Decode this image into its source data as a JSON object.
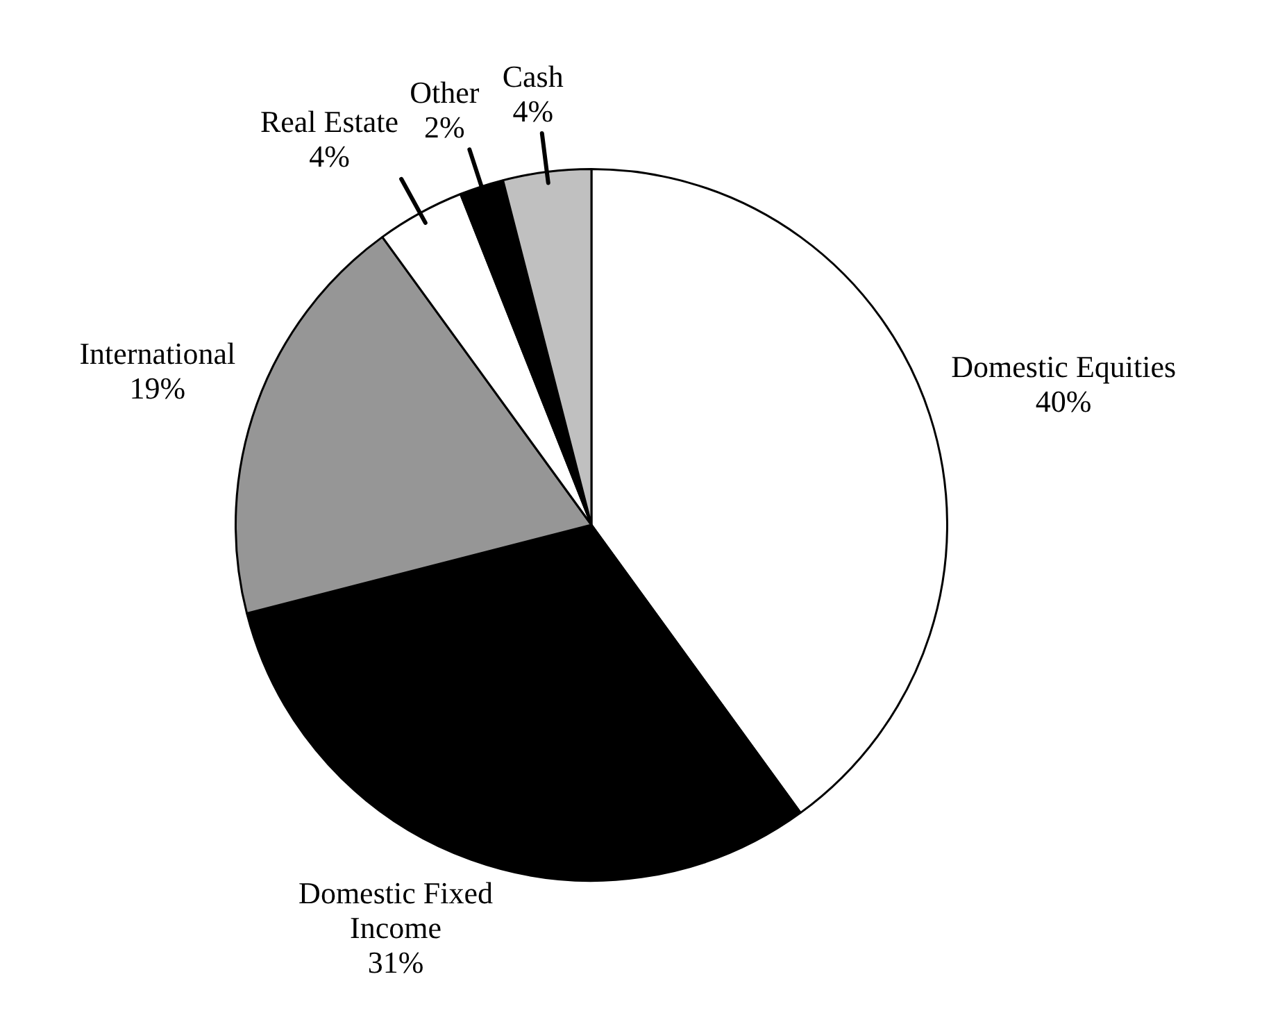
{
  "chart_data": {
    "type": "pie",
    "categories": [
      "Domestic Equities",
      "Domestic Fixed Income",
      "International",
      "Real Estate",
      "Other",
      "Cash"
    ],
    "values": [
      40,
      31,
      19,
      4,
      2,
      4
    ],
    "colors": [
      "#ffffff",
      "#000000",
      "#969696",
      "#ffffff",
      "#000000",
      "#c0c0c0"
    ],
    "value_labels": [
      "40%",
      "31%",
      "19%",
      "4%",
      "2%",
      "4%"
    ],
    "legend": false
  }
}
